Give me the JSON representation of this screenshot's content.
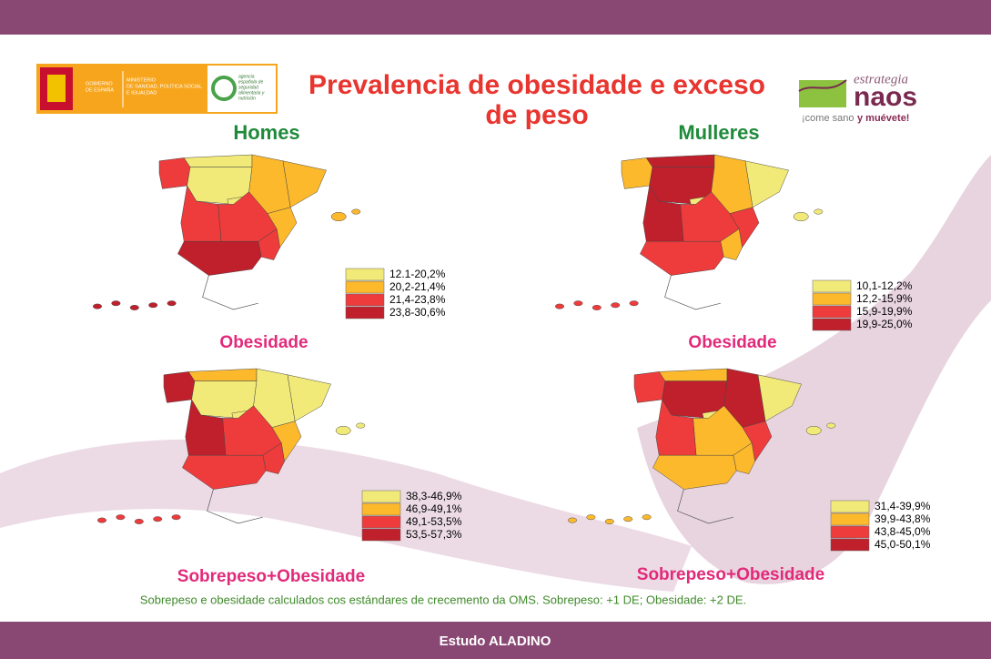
{
  "header": {
    "title_lines": [
      "Prevalencia de obesidade e exceso",
      "de peso"
    ],
    "logo_left": {
      "gobierno": [
        "GOBIERNO",
        "DE ESPAÑA"
      ],
      "ministerio": [
        "MINISTERIO",
        "DE SANIDAD, POLÍTICA SOCIAL",
        "E IGUALDAD"
      ],
      "agencia": [
        "agencia",
        "española de",
        "seguridad",
        "alimentaria y",
        "nutrición"
      ]
    },
    "logo_right": {
      "estrategia": "estrategia",
      "naos": "naos",
      "slogan_a": "¡come sano",
      "slogan_b": "y muévete!"
    }
  },
  "sections": [
    {
      "heading": "Homes"
    },
    {
      "heading": "Mulleres"
    }
  ],
  "panels": [
    {
      "label": "Obesidade",
      "legend": [
        {
          "label": "12.1-20,2%",
          "color": "#f2ea78"
        },
        {
          "label": "20,2-21,4%",
          "color": "#fdb92c"
        },
        {
          "label": "21,4-23,8%",
          "color": "#ee3b3b"
        },
        {
          "label": "23,8-30,6%",
          "color": "#c01f2c"
        }
      ]
    },
    {
      "label": "Obesidade",
      "legend": [
        {
          "label": "10,1-12,2%",
          "color": "#f2ea78"
        },
        {
          "label": "12,2-15,9%",
          "color": "#fdb92c"
        },
        {
          "label": "15,9-19,9%",
          "color": "#ee3b3b"
        },
        {
          "label": "19,9-25,0%",
          "color": "#c01f2c"
        }
      ]
    },
    {
      "label": "Sobrepeso+Obesidade",
      "legend": [
        {
          "label": "38,3-46,9%",
          "color": "#f2ea78"
        },
        {
          "label": "46,9-49,1%",
          "color": "#fdb92c"
        },
        {
          "label": "49,1-53,5%",
          "color": "#ee3b3b"
        },
        {
          "label": "53,5-57,3%",
          "color": "#c01f2c"
        }
      ]
    },
    {
      "label": "Sobrepeso+Obesidade",
      "legend": [
        {
          "label": "31,4-39,9%",
          "color": "#f2ea78"
        },
        {
          "label": "39,9-43,8%",
          "color": "#fdb92c"
        },
        {
          "label": "43,8-45,0%",
          "color": "#ee3b3b"
        },
        {
          "label": "45,0-50,1%",
          "color": "#c01f2c"
        }
      ]
    }
  ],
  "footnote": "Sobrepeso e obesidade calculados cos estándares de crecemento da OMS. Sobrepeso: +1 DE; Obesidade: +2 DE.",
  "footer": "Estudo ALADINO"
}
